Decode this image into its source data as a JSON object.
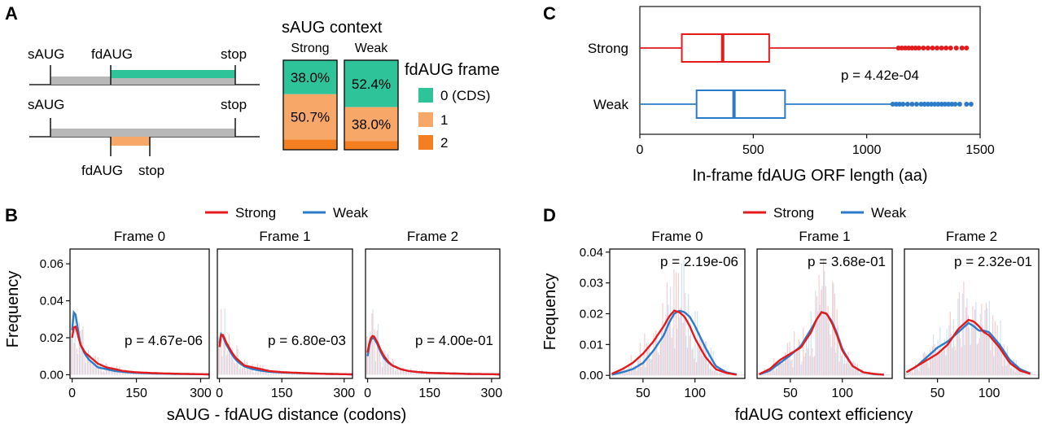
{
  "colors": {
    "strong": "#e41a1c",
    "weak": "#2b7bca",
    "frame0": "#2fc39a",
    "frame1": "#f7a868",
    "frame2": "#f47f20",
    "gray": "#b8b8b8"
  },
  "panelA": {
    "letter": "A",
    "diagram1": {
      "left": "sAUG",
      "mid": "fdAUG",
      "right": "stop"
    },
    "diagram2": {
      "left": "sAUG",
      "right": "stop",
      "below_left": "fdAUG",
      "below_right": "stop"
    },
    "context_title": "sAUG context",
    "col_strong": "Strong",
    "col_weak": "Weak",
    "legend_title": "fdAUG frame",
    "legend": [
      "0 (CDS)",
      "1",
      "2"
    ]
  },
  "panelB": {
    "letter": "B"
  },
  "panelC": {
    "letter": "C"
  },
  "panelD": {
    "letter": "D"
  },
  "chart_data": [
    {
      "id": "A-bars",
      "type": "bar",
      "stacked": true,
      "categories": [
        "Strong",
        "Weak"
      ],
      "series": [
        {
          "name": "0 (CDS)",
          "values": [
            38.0,
            52.4
          ]
        },
        {
          "name": "1",
          "values": [
            50.7,
            38.0
          ]
        },
        {
          "name": "2",
          "values": [
            11.3,
            9.6
          ]
        }
      ],
      "labels": {
        "Strong": [
          "38.0%",
          "50.7%"
        ],
        "Weak": [
          "52.4%",
          "38.0%"
        ]
      }
    },
    {
      "id": "C",
      "type": "box",
      "xlabel": "In-frame fdAUG ORF length (aa)",
      "xlim": [
        0,
        1500
      ],
      "xticks": [
        0,
        500,
        1000,
        1500
      ],
      "annotation": "p = 4.42e-04",
      "boxes": [
        {
          "name": "Strong",
          "whisker_low": 0,
          "q1": 185,
          "median": 365,
          "q3": 570,
          "whisker_high": 1130,
          "outliers": [
            1140,
            1155,
            1170,
            1185,
            1200,
            1215,
            1230,
            1250,
            1270,
            1290,
            1310,
            1330,
            1350,
            1370,
            1395,
            1420,
            1440
          ]
        },
        {
          "name": "Weak",
          "whisker_low": 0,
          "q1": 250,
          "median": 415,
          "q3": 640,
          "whisker_high": 1110,
          "outliers": [
            1115,
            1130,
            1145,
            1160,
            1180,
            1200,
            1220,
            1240,
            1255,
            1270,
            1285,
            1300,
            1315,
            1330,
            1345,
            1360,
            1375,
            1390,
            1410,
            1440,
            1460
          ]
        }
      ]
    },
    {
      "id": "B",
      "type": "line",
      "legend": [
        "Strong",
        "Weak"
      ],
      "xlabel": "sAUG - fdAUG distance (codons)",
      "ylabel": "Frequency",
      "xlim": [
        -5,
        320
      ],
      "ylim": [
        -0.002,
        0.068
      ],
      "xticks": [
        0,
        150,
        300
      ],
      "xtick_labels": [
        "0",
        "150",
        "300"
      ],
      "yticks": [
        0.0,
        0.02,
        0.04,
        0.06
      ],
      "ytick_labels": [
        "0.00",
        "0.02",
        "0.04",
        "0.06"
      ],
      "panels": [
        {
          "title": "Frame 0",
          "pvalue": "p = 4.67e-06",
          "series": [
            {
              "name": "Strong",
              "x": [
                0,
                3,
                6,
                10,
                15,
                20,
                30,
                40,
                50,
                60,
                80,
                100,
                120,
                150,
                200,
                250,
                300,
                320
              ],
              "y": [
                0.02,
                0.025,
                0.027,
                0.025,
                0.02,
                0.016,
                0.012,
                0.01,
                0.008,
                0.006,
                0.004,
                0.003,
                0.002,
                0.0013,
                0.0008,
                0.0005,
                0.0003,
                0.0002
              ]
            },
            {
              "name": "Weak",
              "x": [
                0,
                3,
                6,
                10,
                15,
                20,
                30,
                40,
                50,
                60,
                80,
                100,
                120,
                150,
                200,
                250,
                300,
                320
              ],
              "y": [
                0.024,
                0.033,
                0.035,
                0.03,
                0.022,
                0.016,
                0.011,
                0.008,
                0.006,
                0.004,
                0.003,
                0.002,
                0.0015,
                0.001,
                0.0006,
                0.0004,
                0.0003,
                0.0002
              ]
            }
          ]
        },
        {
          "title": "Frame 1",
          "pvalue": "p = 6.80e-03",
          "series": [
            {
              "name": "Strong",
              "x": [
                0,
                3,
                6,
                10,
                15,
                20,
                30,
                40,
                50,
                60,
                80,
                100,
                120,
                150,
                200,
                250,
                300,
                320
              ],
              "y": [
                0.015,
                0.021,
                0.022,
                0.021,
                0.018,
                0.016,
                0.012,
                0.009,
                0.007,
                0.005,
                0.004,
                0.003,
                0.002,
                0.0014,
                0.0009,
                0.0005,
                0.0003,
                0.0002
              ]
            },
            {
              "name": "Weak",
              "x": [
                0,
                3,
                6,
                10,
                15,
                20,
                30,
                40,
                50,
                60,
                80,
                100,
                120,
                150,
                200,
                250,
                300,
                320
              ],
              "y": [
                0.017,
                0.022,
                0.022,
                0.02,
                0.017,
                0.015,
                0.011,
                0.008,
                0.006,
                0.0045,
                0.003,
                0.0022,
                0.0016,
                0.0012,
                0.0008,
                0.0005,
                0.0003,
                0.0002
              ]
            }
          ]
        },
        {
          "title": "Frame 2",
          "pvalue": "p = 4.00e-01",
          "series": [
            {
              "name": "Strong",
              "x": [
                0,
                5,
                10,
                15,
                20,
                25,
                30,
                40,
                50,
                60,
                80,
                100,
                120,
                150,
                200,
                250,
                300,
                320
              ],
              "y": [
                0.012,
                0.018,
                0.021,
                0.021,
                0.019,
                0.017,
                0.014,
                0.01,
                0.007,
                0.005,
                0.003,
                0.002,
                0.0015,
                0.001,
                0.0007,
                0.0004,
                0.0003,
                0.0002
              ]
            },
            {
              "name": "Weak",
              "x": [
                0,
                5,
                10,
                15,
                20,
                25,
                30,
                40,
                50,
                60,
                80,
                100,
                120,
                150,
                200,
                250,
                300,
                320
              ],
              "y": [
                0.01,
                0.017,
                0.02,
                0.02,
                0.018,
                0.016,
                0.013,
                0.009,
                0.0065,
                0.005,
                0.003,
                0.002,
                0.0015,
                0.001,
                0.0007,
                0.0004,
                0.0003,
                0.0002
              ]
            }
          ]
        }
      ]
    },
    {
      "id": "D",
      "type": "line",
      "legend": [
        "Strong",
        "Weak"
      ],
      "xlabel": "fdAUG context efficiency",
      "ylabel": "Frequency",
      "xlim": [
        18,
        148
      ],
      "ylim": [
        -0.001,
        0.041
      ],
      "xticks": [
        50,
        100
      ],
      "xtick_labels": [
        "50",
        "100"
      ],
      "yticks": [
        0.0,
        0.01,
        0.02,
        0.03,
        0.04
      ],
      "ytick_labels": [
        "0.00",
        "0.01",
        "0.02",
        "0.03",
        "0.04"
      ],
      "panels": [
        {
          "title": "Frame 0",
          "pvalue": "p = 2.19e-06",
          "series": [
            {
              "name": "Strong",
              "x": [
                20,
                30,
                40,
                50,
                60,
                70,
                75,
                80,
                85,
                90,
                95,
                100,
                110,
                120,
                130,
                140
              ],
              "y": [
                0.0005,
                0.002,
                0.004,
                0.007,
                0.011,
                0.016,
                0.019,
                0.021,
                0.0205,
                0.019,
                0.016,
                0.012,
                0.006,
                0.002,
                0.0008,
                0.0002
              ]
            },
            {
              "name": "Weak",
              "x": [
                20,
                30,
                40,
                50,
                60,
                70,
                75,
                80,
                85,
                90,
                95,
                100,
                110,
                120,
                130,
                140
              ],
              "y": [
                0.0002,
                0.001,
                0.002,
                0.004,
                0.008,
                0.013,
                0.017,
                0.02,
                0.021,
                0.0205,
                0.019,
                0.016,
                0.009,
                0.003,
                0.001,
                0.0003
              ]
            }
          ]
        },
        {
          "title": "Frame 1",
          "pvalue": "p = 3.68e-01",
          "series": [
            {
              "name": "Strong",
              "x": [
                20,
                30,
                40,
                50,
                60,
                70,
                75,
                80,
                85,
                90,
                95,
                100,
                110,
                120,
                130,
                140
              ],
              "y": [
                0.0004,
                0.002,
                0.005,
                0.007,
                0.009,
                0.014,
                0.018,
                0.0205,
                0.02,
                0.017,
                0.013,
                0.008,
                0.003,
                0.001,
                0.0005,
                0.0002
              ]
            },
            {
              "name": "Weak",
              "x": [
                20,
                30,
                40,
                50,
                60,
                70,
                75,
                80,
                85,
                90,
                95,
                100,
                110,
                120,
                130,
                140
              ],
              "y": [
                0.0003,
                0.0015,
                0.004,
                0.0065,
                0.0095,
                0.015,
                0.018,
                0.0205,
                0.02,
                0.0175,
                0.0135,
                0.0085,
                0.003,
                0.001,
                0.0004,
                0.0002
              ]
            }
          ]
        },
        {
          "title": "Frame 2",
          "pvalue": "p = 2.32e-01",
          "series": [
            {
              "name": "Strong",
              "x": [
                20,
                30,
                40,
                50,
                60,
                70,
                80,
                85,
                90,
                95,
                100,
                110,
                120,
                130,
                140
              ],
              "y": [
                0.001,
                0.003,
                0.005,
                0.007,
                0.01,
                0.015,
                0.018,
                0.0175,
                0.016,
                0.014,
                0.013,
                0.009,
                0.004,
                0.0015,
                0.0005
              ]
            },
            {
              "name": "Weak",
              "x": [
                20,
                30,
                40,
                50,
                60,
                70,
                80,
                85,
                90,
                95,
                100,
                110,
                120,
                130,
                140
              ],
              "y": [
                0.001,
                0.003,
                0.006,
                0.009,
                0.011,
                0.014,
                0.017,
                0.016,
                0.0145,
                0.0145,
                0.014,
                0.01,
                0.005,
                0.002,
                0.0006
              ]
            }
          ]
        }
      ]
    }
  ]
}
